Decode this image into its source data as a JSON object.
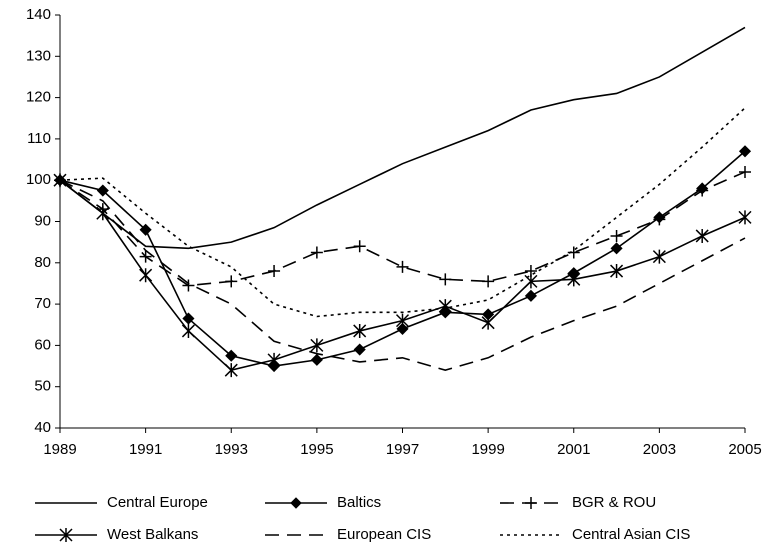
{
  "chart_data": {
    "type": "line",
    "x": [
      1989,
      1990,
      1991,
      1992,
      1993,
      1994,
      1995,
      1996,
      1997,
      1998,
      1999,
      2000,
      2001,
      2002,
      2003,
      2004,
      2005
    ],
    "xlim": [
      1989,
      2005
    ],
    "xticks": [
      1989,
      1991,
      1993,
      1995,
      1997,
      1999,
      2001,
      2003,
      2005
    ],
    "ylim": [
      40,
      140
    ],
    "yticks": [
      40,
      50,
      60,
      70,
      80,
      90,
      100,
      110,
      120,
      130,
      140
    ],
    "grid": false,
    "legend": "bottom",
    "series": [
      {
        "name": "Central Europe",
        "color": "#000000",
        "dash": "solid",
        "marker": "none",
        "values": [
          100,
          92,
          84,
          83.5,
          85,
          88.5,
          94,
          99,
          104,
          108,
          112,
          117,
          119.5,
          121,
          125,
          131,
          137
        ]
      },
      {
        "name": "Baltics",
        "color": "#000000",
        "dash": "solid",
        "marker": "diamond",
        "values": [
          100,
          97.5,
          88,
          66.5,
          57.5,
          55,
          56.5,
          59,
          64,
          68,
          67.5,
          72,
          77.5,
          83.5,
          91,
          98,
          107
        ]
      },
      {
        "name": "BGR & ROU",
        "color": "#000000",
        "dash": "dashed",
        "marker": "plus",
        "values": [
          100,
          93,
          81.5,
          74.5,
          75.5,
          78,
          82.5,
          84,
          79,
          76,
          75.5,
          78,
          82.5,
          86.5,
          90.5,
          97.5,
          102
        ]
      },
      {
        "name": "West Balkans",
        "color": "#000000",
        "dash": "solid",
        "marker": "star",
        "values": [
          100,
          92,
          77,
          63.5,
          54,
          56.5,
          60,
          63.5,
          66,
          69.5,
          65.5,
          75.5,
          76,
          78,
          81.5,
          86.5,
          91
        ]
      },
      {
        "name": "European CIS",
        "color": "#000000",
        "dash": "dashed",
        "marker": "none",
        "values": [
          100,
          95,
          83,
          75,
          70,
          61,
          58,
          56,
          57,
          54,
          57,
          62,
          66,
          69.5,
          75,
          80.5,
          86
        ]
      },
      {
        "name": "Central Asian CIS",
        "color": "#000000",
        "dash": "dotted",
        "marker": "none",
        "values": [
          100,
          100.5,
          92,
          84,
          79,
          70,
          67,
          68,
          68,
          69,
          71,
          77,
          83,
          91,
          99,
          108,
          117.5
        ]
      }
    ]
  }
}
